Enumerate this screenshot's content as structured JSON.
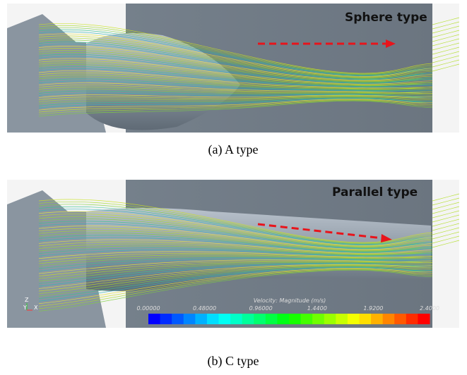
{
  "panels": [
    {
      "label": "Sphere type",
      "caption": "(a)  A  type"
    },
    {
      "label": "Parallel type",
      "caption": "(b)  C  type",
      "colorbar": {
        "title": "Velocity: Magnitude (m/s)",
        "ticks": [
          "0.00000",
          "0.48000",
          "0.96000",
          "1.4400",
          "1.9200",
          "2.4000"
        ]
      },
      "axes": [
        "Z",
        "Y",
        "X"
      ]
    }
  ]
}
